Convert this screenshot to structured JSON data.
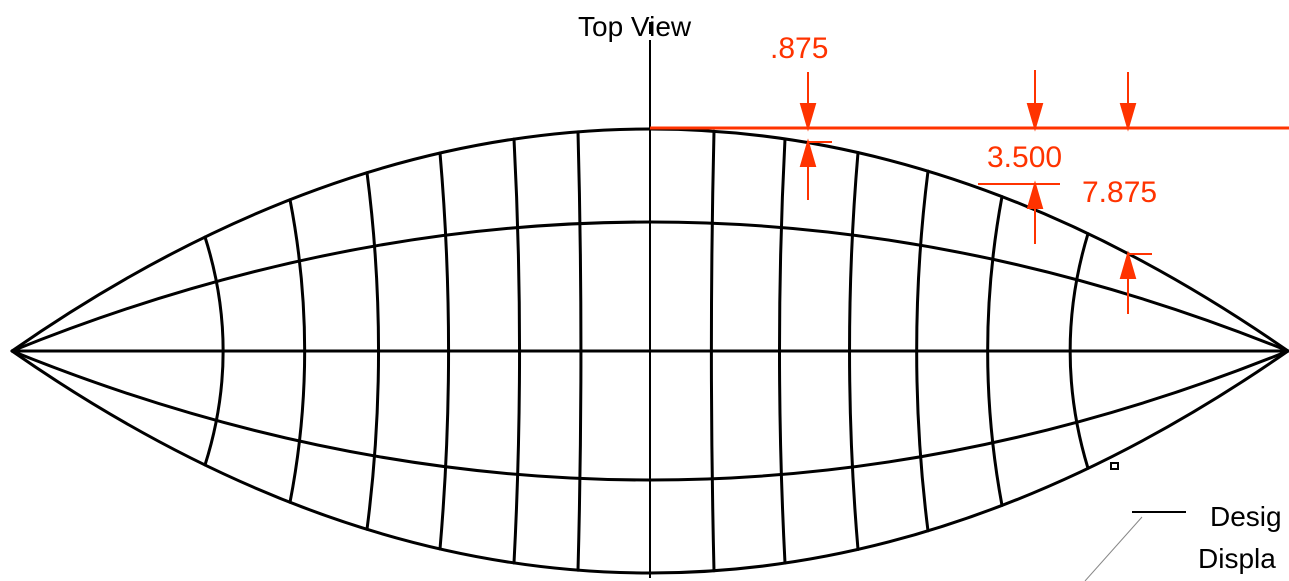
{
  "view_title": "Top View",
  "dimensions": [
    {
      "name": "dim-875",
      "value": ".875"
    },
    {
      "name": "dim-3500",
      "value": "3.500"
    },
    {
      "name": "dim-7875",
      "value": "7.875"
    }
  ],
  "callout": {
    "line1": "Desig",
    "line2": "Displa"
  },
  "colors": {
    "outline": "#000000",
    "dimension": "#ff3300",
    "leader": "#888888"
  }
}
